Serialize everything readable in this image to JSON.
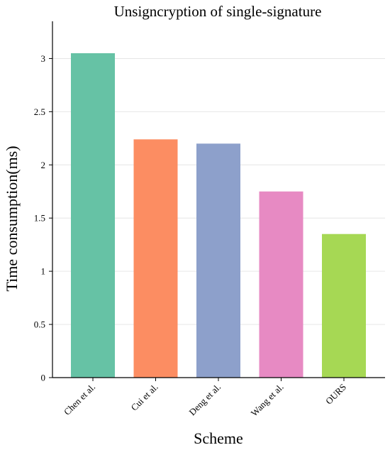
{
  "chart_data": {
    "type": "bar",
    "title": "Unsigncryption of single-signature",
    "xlabel": "Scheme",
    "ylabel": "Time consumption(ms)",
    "categories": [
      "Chen et al.",
      "Cui et al.",
      "Deng et al.",
      "Wang et al.",
      "OURS"
    ],
    "values": [
      3.05,
      2.24,
      2.2,
      1.75,
      1.35
    ],
    "colors": [
      "#66c2a5",
      "#fc8d62",
      "#8da0cb",
      "#e78ac3",
      "#a6d854"
    ],
    "ylim": [
      0,
      3.35
    ],
    "yticks": [
      0,
      0.5,
      1,
      1.5,
      2,
      2.5,
      3
    ],
    "ytick_labels": [
      "0",
      "0.5",
      "1",
      "1.5",
      "2",
      "2.5",
      "3"
    ],
    "grid": "horizontal",
    "legend": "none"
  }
}
